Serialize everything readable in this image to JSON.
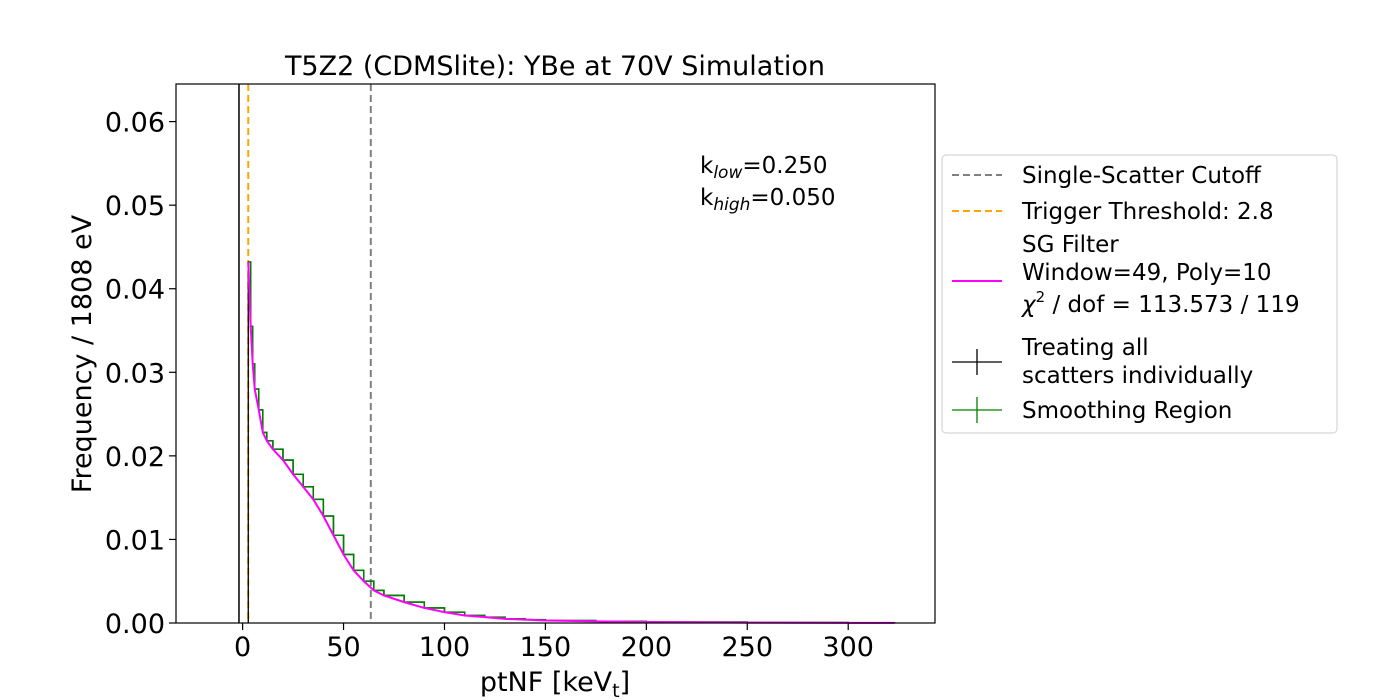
{
  "chart_data": {
    "type": "line",
    "title": "T5Z2 (CDMSlite): YBe at 70V Simulation",
    "xlabel": "ptNF [keV",
    "xlabel_sub": "t",
    "xlabel_end": "]",
    "ylabel": "Frequency / 1808 eV",
    "xlim": [
      -33,
      343
    ],
    "ylim": [
      0,
      0.0645
    ],
    "xticks": [
      0,
      50,
      100,
      150,
      200,
      250,
      300
    ],
    "xtick_labels": [
      "0",
      "50",
      "100",
      "150",
      "200",
      "250",
      "300"
    ],
    "yticks": [
      0,
      0.01,
      0.02,
      0.03,
      0.04,
      0.05,
      0.06
    ],
    "ytick_labels": [
      "0.00",
      "0.01",
      "0.02",
      "0.03",
      "0.04",
      "0.05",
      "0.06"
    ],
    "grid": false,
    "legend_position": "outside-right",
    "vlines": [
      {
        "name": "Single-Scatter Cutoff",
        "x": 63.5,
        "color": "#808080",
        "style": "dashed"
      },
      {
        "name": "Trigger Threshold: 2.8",
        "x": 2.8,
        "color": "#ffa500",
        "style": "dashed"
      },
      {
        "name": "",
        "x": -1.8,
        "color": "#000000",
        "style": "solid"
      }
    ],
    "annotations": {
      "k_low_base": "k",
      "k_low_sub": "low",
      "k_low_value": "=0.250",
      "k_high_base": "k",
      "k_high_sub": "high",
      "k_high_value": "=0.050"
    },
    "series": [
      {
        "name": "SG Filter",
        "legend_lines": [
          "SG Filter",
          "Window=49, Poly=10"
        ],
        "chi_symbol": "χ",
        "chi_sup": "2",
        "chi_rest": " / dof = 113.573 / 119",
        "color": "#ff00ff",
        "x": [
          2.8,
          4,
          5,
          6,
          8,
          10,
          12,
          15,
          20,
          25,
          30,
          35,
          40,
          45,
          50,
          55,
          60,
          65,
          70,
          80,
          90,
          100,
          110,
          120,
          130,
          140,
          150,
          175,
          200,
          250,
          300,
          323
        ],
        "y": [
          0.0432,
          0.0355,
          0.031,
          0.028,
          0.0255,
          0.0228,
          0.0218,
          0.0208,
          0.0195,
          0.0178,
          0.0163,
          0.0148,
          0.0128,
          0.0105,
          0.0082,
          0.0063,
          0.005,
          0.0039,
          0.0033,
          0.0025,
          0.0018,
          0.0013,
          0.0009,
          0.0007,
          0.0005,
          0.0004,
          0.0003,
          0.0002,
          0.00012,
          5e-05,
          2e-05,
          1e-05
        ]
      },
      {
        "name": "Treating all scatters individually",
        "legend_lines": [
          "Treating all",
          "scatters individually"
        ],
        "color": "#000000",
        "x": [
          2.8,
          4,
          5,
          6,
          8,
          10,
          12,
          15,
          20,
          25,
          30,
          35,
          40,
          45,
          50,
          55,
          60,
          65,
          70,
          80,
          90,
          100,
          110,
          120,
          130,
          140,
          150,
          175,
          200,
          250,
          300,
          323
        ],
        "y": [
          0.0432,
          0.0355,
          0.031,
          0.028,
          0.0255,
          0.0228,
          0.0218,
          0.0208,
          0.0195,
          0.0178,
          0.0163,
          0.0148,
          0.0128,
          0.0105,
          0.0082,
          0.0063,
          0.005,
          0.0039,
          0.0033,
          0.0025,
          0.0018,
          0.0013,
          0.0009,
          0.0007,
          0.0005,
          0.0004,
          0.0003,
          0.0002,
          0.00012,
          5e-05,
          2e-05,
          1e-05
        ]
      },
      {
        "name": "Smoothing Region",
        "legend_lines": [
          "Smoothing Region"
        ],
        "color": "#008000",
        "x": [
          2.8,
          4,
          5,
          6,
          8,
          10,
          12,
          15,
          20,
          25,
          30,
          35,
          40,
          45,
          50,
          55,
          60,
          65,
          70,
          80,
          90,
          100,
          110,
          120,
          130,
          140,
          150,
          175,
          200,
          250,
          300,
          323
        ],
        "y": [
          0.0432,
          0.0355,
          0.031,
          0.028,
          0.0255,
          0.0228,
          0.0218,
          0.0208,
          0.0195,
          0.0178,
          0.0163,
          0.0148,
          0.0128,
          0.0105,
          0.0082,
          0.0063,
          0.005,
          0.0039,
          0.0033,
          0.0025,
          0.0018,
          0.0013,
          0.0009,
          0.0007,
          0.0005,
          0.0004,
          0.0003,
          0.0002,
          0.00012,
          5e-05,
          2e-05,
          1e-05
        ]
      }
    ]
  }
}
